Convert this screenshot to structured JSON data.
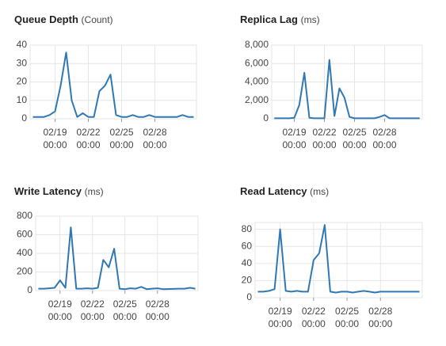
{
  "chart_data": [
    {
      "type": "line",
      "title": "Queue Depth",
      "unit": "(Count)",
      "color": "#2f78b4",
      "grid": true,
      "x": [
        "02/17 00:00",
        "02/17 12:00",
        "02/18 00:00",
        "02/18 12:00",
        "02/19 00:00",
        "02/19 12:00",
        "02/20 00:00",
        "02/20 12:00",
        "02/21 00:00",
        "02/21 12:00",
        "02/22 00:00",
        "02/22 12:00",
        "02/23 00:00",
        "02/23 12:00",
        "02/24 00:00",
        "02/24 12:00",
        "02/25 00:00",
        "02/25 12:00",
        "02/26 00:00",
        "02/26 12:00",
        "02/27 00:00",
        "02/27 12:00",
        "02/28 00:00",
        "02/28 12:00",
        "03/01 00:00",
        "03/01 12:00",
        "03/02 00:00",
        "03/02 12:00"
      ],
      "values": [
        1,
        1,
        1,
        2,
        4,
        18,
        36,
        10,
        1,
        3,
        1,
        1,
        15,
        18,
        24,
        2,
        1,
        1,
        2,
        1,
        1,
        2,
        1,
        1,
        1,
        2,
        1,
        1
      ],
      "xlim": [
        "02/16 18:00",
        "03/02 18:00"
      ],
      "xticks": [
        "02/19 00:00",
        "02/22 00:00",
        "02/25 00:00",
        "02/28 00:00"
      ],
      "ylim": [
        0,
        40
      ],
      "yticks": [
        0,
        10,
        20,
        30,
        40
      ]
    },
    {
      "type": "line",
      "title": "Replica Lag",
      "unit": "(ms)",
      "color": "#2f78b4",
      "grid": true,
      "x": [
        "02/17 00:00",
        "02/17 12:00",
        "02/18 00:00",
        "02/18 12:00",
        "02/19 00:00",
        "02/19 12:00",
        "02/20 00:00",
        "02/20 12:00",
        "02/21 00:00",
        "02/21 12:00",
        "02/22 00:00",
        "02/22 12:00",
        "02/23 00:00",
        "02/23 12:00",
        "02/24 00:00",
        "02/24 12:00",
        "02/25 00:00",
        "02/25 12:00",
        "02/26 00:00",
        "02/26 12:00",
        "02/27 00:00",
        "02/27 12:00",
        "02/28 00:00",
        "02/28 12:00",
        "03/01 00:00",
        "03/01 12:00",
        "03/02 00:00",
        "03/02 12:00"
      ],
      "values": [
        50,
        50,
        50,
        50,
        100,
        1500,
        5000,
        100,
        50,
        50,
        50,
        6400,
        300,
        3300,
        2300,
        200,
        50,
        50,
        50,
        50,
        50,
        200,
        400,
        50,
        50,
        50,
        50,
        50
      ],
      "xlim": [
        "02/16 18:00",
        "03/02 18:00"
      ],
      "xticks": [
        "02/19 00:00",
        "02/22 00:00",
        "02/25 00:00",
        "02/28 00:00"
      ],
      "ylim": [
        0,
        8000
      ],
      "yticks": [
        0,
        {
          "value": 2000,
          "label": "2,000"
        },
        {
          "value": 4000,
          "label": "4,000"
        },
        {
          "value": 6000,
          "label": "6,000"
        },
        {
          "value": 8000,
          "label": "8,000"
        }
      ]
    },
    {
      "type": "line",
      "title": "Write Latency",
      "unit": "(ms)",
      "color": "#2f78b4",
      "grid": true,
      "x": [
        "02/17 00:00",
        "02/17 12:00",
        "02/18 00:00",
        "02/18 12:00",
        "02/19 00:00",
        "02/19 12:00",
        "02/20 00:00",
        "02/20 12:00",
        "02/21 00:00",
        "02/21 12:00",
        "02/22 00:00",
        "02/22 12:00",
        "02/23 00:00",
        "02/23 12:00",
        "02/24 00:00",
        "02/24 12:00",
        "02/25 00:00",
        "02/25 12:00",
        "02/26 00:00",
        "02/26 12:00",
        "02/27 00:00",
        "02/27 12:00",
        "02/28 00:00",
        "02/28 12:00",
        "03/01 00:00",
        "03/01 12:00",
        "03/02 00:00",
        "03/02 12:00"
      ],
      "values": [
        20,
        20,
        25,
        30,
        110,
        30,
        680,
        20,
        20,
        25,
        20,
        30,
        330,
        250,
        450,
        20,
        15,
        25,
        20,
        40,
        15,
        20,
        25,
        15,
        20,
        20,
        30,
        20
      ],
      "xlim": [
        "02/16 18:00",
        "03/02 18:00"
      ],
      "xticks": [
        "02/19 00:00",
        "02/22 00:00",
        "02/25 00:00",
        "02/28 00:00"
      ],
      "ylim": [
        0,
        800
      ],
      "yticks": [
        0,
        200,
        400,
        600,
        800
      ]
    },
    {
      "type": "line",
      "title": "Read Latency",
      "unit": "(ms)",
      "color": "#2f78b4",
      "grid": true,
      "x": [
        "02/17 00:00",
        "02/17 12:00",
        "02/18 00:00",
        "02/18 12:00",
        "02/19 00:00",
        "02/19 12:00",
        "02/20 00:00",
        "02/20 12:00",
        "02/21 00:00",
        "02/21 12:00",
        "02/22 00:00",
        "02/22 12:00",
        "02/23 00:00",
        "02/23 12:00",
        "02/24 00:00",
        "02/24 12:00",
        "02/25 00:00",
        "02/25 12:00",
        "02/26 00:00",
        "02/26 12:00",
        "02/27 00:00",
        "02/27 12:00",
        "02/28 00:00",
        "02/28 12:00",
        "03/01 00:00",
        "03/01 12:00",
        "03/02 00:00",
        "03/02 12:00"
      ],
      "values": [
        7,
        7,
        8,
        10,
        80,
        8,
        7,
        8,
        7,
        7,
        44,
        52,
        85,
        7,
        6,
        7,
        7,
        6,
        7,
        8,
        7,
        6,
        7,
        7,
        7,
        7,
        7,
        7
      ],
      "xlim": [
        "02/16 18:00",
        "03/02 18:00"
      ],
      "xticks": [
        "02/19 00:00",
        "02/22 00:00",
        "02/25 00:00",
        "02/28 00:00"
      ],
      "ylim": [
        0,
        88
      ],
      "yticks": [
        0,
        20,
        40,
        60,
        80
      ]
    }
  ]
}
